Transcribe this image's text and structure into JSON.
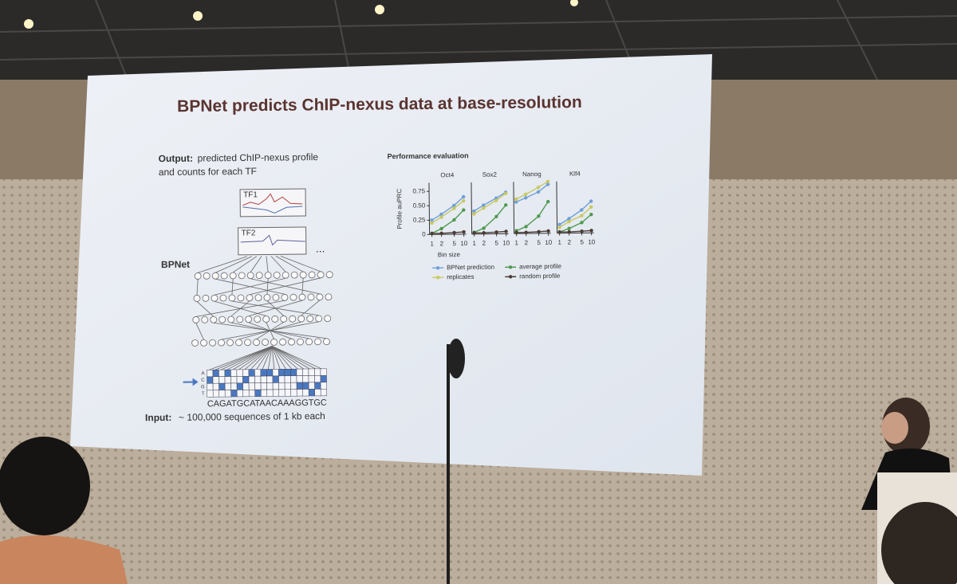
{
  "slide": {
    "title": "BPNet predicts ChIP-nexus data at base-resolution",
    "output_label": "Output:",
    "output_text": [
      "predicted ChIP-nexus profile",
      "and counts for each TF"
    ],
    "tf_labels": [
      "TF1",
      "TF2"
    ],
    "ellipsis": "...",
    "model_label": "BPNet",
    "bases": [
      "A",
      "C",
      "G",
      "T"
    ],
    "sequence": "CAGATGCATAACAAAGGTGC",
    "input_label": "Input:",
    "input_text": "~ 100,000 sequences of 1 kb each"
  },
  "chart_data": {
    "type": "line",
    "title": "Performance evaluation",
    "ylabel": "Profile auPRC",
    "xlabel": "Bin size",
    "xscale": "log",
    "x": [
      1,
      2,
      5,
      10
    ],
    "xlim": [
      1,
      10
    ],
    "xticks": [
      1,
      2,
      5,
      10
    ],
    "ylim": [
      0,
      0.9
    ],
    "yticks": [
      0,
      0.25,
      {
        "value": 0.5,
        "label": "0.50"
      },
      0.75
    ],
    "series": [
      {
        "name": "BPNet prediction",
        "color": "#6f9fd8"
      },
      {
        "name": "replicates",
        "color": "#c8c860"
      },
      {
        "name": "average profile",
        "color": "#4f9a4f"
      },
      {
        "name": "random profile",
        "color": "#4a3a35"
      }
    ],
    "panels": [
      {
        "title": "Oct4",
        "series": [
          {
            "values": [
              0.25,
              0.35,
              0.5,
              0.65
            ]
          },
          {
            "values": [
              0.2,
              0.3,
              0.45,
              0.58
            ]
          },
          {
            "values": [
              0.02,
              0.1,
              0.25,
              0.42
            ]
          },
          {
            "values": [
              0.02,
              0.02,
              0.03,
              0.04
            ]
          }
        ]
      },
      {
        "title": "Sox2",
        "series": [
          {
            "values": [
              0.4,
              0.5,
              0.62,
              0.72
            ]
          },
          {
            "values": [
              0.35,
              0.45,
              0.58,
              0.7
            ]
          },
          {
            "values": [
              0.03,
              0.1,
              0.3,
              0.5
            ]
          },
          {
            "values": [
              0.02,
              0.02,
              0.03,
              0.04
            ]
          }
        ]
      },
      {
        "title": "Nanog",
        "series": [
          {
            "values": [
              0.55,
              0.62,
              0.72,
              0.85
            ]
          },
          {
            "values": [
              0.6,
              0.68,
              0.8,
              0.9
            ]
          },
          {
            "values": [
              0.05,
              0.12,
              0.3,
              0.55
            ]
          },
          {
            "values": [
              0.02,
              0.02,
              0.03,
              0.04
            ]
          }
        ]
      },
      {
        "title": "Klf4",
        "series": [
          {
            "values": [
              0.15,
              0.25,
              0.4,
              0.55
            ]
          },
          {
            "values": [
              0.1,
              0.2,
              0.3,
              0.45
            ]
          },
          {
            "values": [
              0.02,
              0.08,
              0.18,
              0.32
            ]
          },
          {
            "values": [
              0.02,
              0.02,
              0.03,
              0.04
            ]
          }
        ]
      }
    ]
  }
}
